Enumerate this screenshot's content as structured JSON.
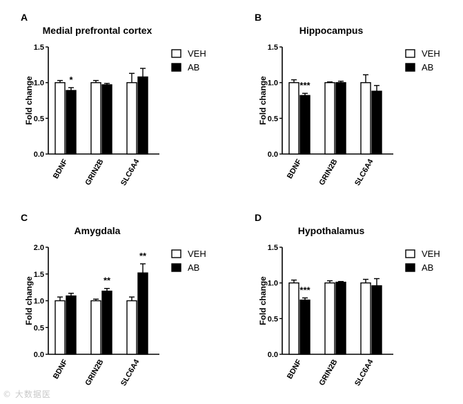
{
  "legend": {
    "series_names": [
      "VEH",
      "AB"
    ],
    "colors": {
      "VEH": "#ffffff",
      "AB": "#000000",
      "stroke": "#000000"
    }
  },
  "watermark": "© 大数据医",
  "chart_data": [
    {
      "panel": "A",
      "title": "Medial prefrontal cortex",
      "type": "bar",
      "categories": [
        "BDNF",
        "GRIN2B",
        "SLC6A4"
      ],
      "xlabel": "",
      "ylabel": "Fold change",
      "ylim": [
        0,
        1.5
      ],
      "yticks": [
        0.0,
        0.5,
        1.0,
        1.5
      ],
      "ytick_labels": [
        "0.0",
        "0.5",
        "1.0",
        "1.5"
      ],
      "series": [
        {
          "name": "VEH",
          "values": [
            1.0,
            1.0,
            1.0
          ],
          "errors": [
            0.03,
            0.03,
            0.13
          ]
        },
        {
          "name": "AB",
          "values": [
            0.89,
            0.97,
            1.08
          ],
          "errors": [
            0.04,
            0.02,
            0.12
          ]
        }
      ],
      "significance": [
        "*",
        "",
        ""
      ]
    },
    {
      "panel": "B",
      "title": "Hippocampus",
      "type": "bar",
      "categories": [
        "BDNF",
        "GRIN2B",
        "SLC6A4"
      ],
      "xlabel": "",
      "ylabel": "Fold change",
      "ylim": [
        0,
        1.5
      ],
      "yticks": [
        0.0,
        0.5,
        1.0,
        1.5
      ],
      "ytick_labels": [
        "0.0",
        "0.5",
        "1.0",
        "1.5"
      ],
      "series": [
        {
          "name": "VEH",
          "values": [
            1.0,
            1.0,
            1.0
          ],
          "errors": [
            0.04,
            0.01,
            0.11
          ]
        },
        {
          "name": "AB",
          "values": [
            0.82,
            1.0,
            0.88
          ],
          "errors": [
            0.03,
            0.02,
            0.08
          ]
        }
      ],
      "significance": [
        "***",
        "",
        ""
      ]
    },
    {
      "panel": "C",
      "title": "Amygdala",
      "type": "bar",
      "categories": [
        "BDNF",
        "GRIN2B",
        "SLC6A4"
      ],
      "xlabel": "",
      "ylabel": "Fold change",
      "ylim": [
        0,
        2.0
      ],
      "yticks": [
        0.0,
        0.5,
        1.0,
        1.5,
        2.0
      ],
      "ytick_labels": [
        "0.0",
        "0.5",
        "1.0",
        "1.5",
        "2.0"
      ],
      "series": [
        {
          "name": "VEH",
          "values": [
            1.0,
            1.0,
            1.0
          ],
          "errors": [
            0.07,
            0.03,
            0.07
          ]
        },
        {
          "name": "AB",
          "values": [
            1.09,
            1.18,
            1.52
          ],
          "errors": [
            0.05,
            0.05,
            0.17
          ]
        }
      ],
      "significance": [
        "",
        "**",
        "**"
      ]
    },
    {
      "panel": "D",
      "title": "Hypothalamus",
      "type": "bar",
      "categories": [
        "BDNF",
        "GRIN2B",
        "SLC6A4"
      ],
      "xlabel": "",
      "ylabel": "Fold change",
      "ylim": [
        0,
        1.5
      ],
      "yticks": [
        0.0,
        0.5,
        1.0,
        1.5
      ],
      "ytick_labels": [
        "0.0",
        "0.5",
        "1.0",
        "1.5"
      ],
      "series": [
        {
          "name": "VEH",
          "values": [
            1.0,
            1.0,
            1.0
          ],
          "errors": [
            0.04,
            0.03,
            0.05
          ]
        },
        {
          "name": "AB",
          "values": [
            0.76,
            1.01,
            0.96
          ],
          "errors": [
            0.03,
            0.01,
            0.1
          ]
        }
      ],
      "significance": [
        "***",
        "",
        ""
      ]
    }
  ]
}
